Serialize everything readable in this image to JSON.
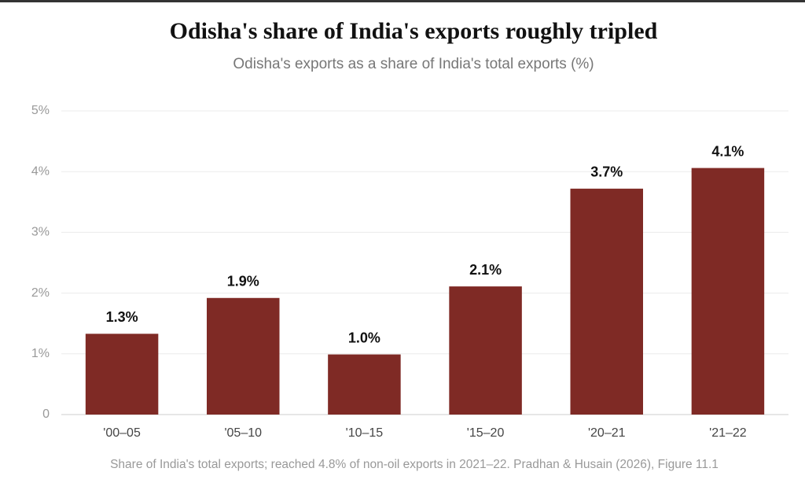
{
  "chart_data": {
    "type": "bar",
    "title": "Odisha's share of India's exports roughly tripled",
    "subtitle": "Odisha's exports as a share of India's total exports (%)",
    "categories": [
      "'00–05",
      "'05–10",
      "'10–15",
      "'15–20",
      "'20–21",
      "'21–22"
    ],
    "values": [
      1.33,
      1.92,
      0.99,
      2.11,
      3.72,
      4.06
    ],
    "value_labels": [
      "1.3%",
      "1.9%",
      "1.0%",
      "2.1%",
      "3.7%",
      "4.1%"
    ],
    "color": "#7f2a25",
    "ylim": [
      0,
      5
    ],
    "yticks": [
      0,
      {
        "value": 1,
        "label": "1%"
      },
      {
        "value": 2,
        "label": "2%"
      },
      {
        "value": 3,
        "label": "3%"
      },
      {
        "value": 4,
        "label": "4%"
      },
      {
        "value": 5,
        "label": "5%"
      }
    ],
    "grid": true,
    "footnote": "Share of India's total exports; reached 4.8% of non-oil exports in 2021–22. Pradhan & Husain (2026), Figure 11.1"
  }
}
